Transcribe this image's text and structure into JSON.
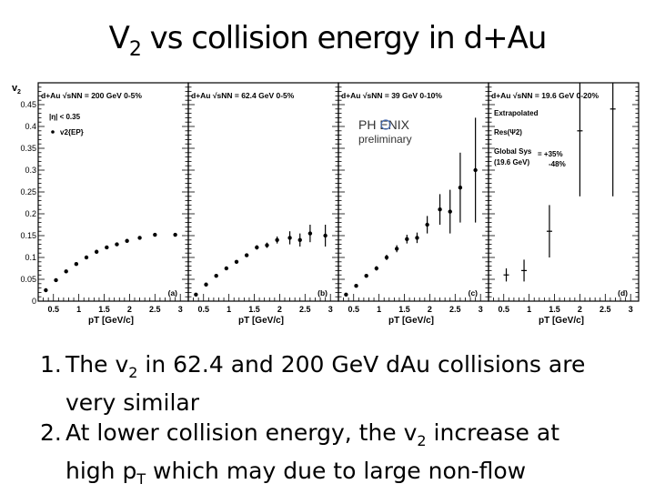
{
  "slide": {
    "title_main": "V",
    "title_sub": "2",
    "title_rest": " vs collision energy in d+Au",
    "bullets": [
      {
        "num": "1.",
        "parts": [
          "The v",
          "2",
          " in 62.4 and 200 GeV dAu collisions are"
        ],
        "cont": "very  similar"
      },
      {
        "num": "2.",
        "parts": [
          "At lower collision energy, the v",
          "2",
          " increase at"
        ],
        "cont_parts": [
          "high p",
          "T",
          " which may due to large non-flow"
        ]
      }
    ]
  },
  "chart_data": {
    "type": "scatter",
    "ylabel": "v2",
    "xlabel": "pT [GeV/c]",
    "ylim": [
      0,
      0.5
    ],
    "yticks": [
      "0",
      "0.05",
      "0.1",
      "0.15",
      "0.2",
      "0.25",
      "0.3",
      "0.35",
      "0.4",
      "0.45"
    ],
    "xticks": [
      "0.5",
      "1",
      "1.5",
      "2",
      "2.5",
      "3"
    ],
    "xlim": [
      0.2,
      3.05
    ],
    "panels": [
      {
        "tag": "(a)",
        "header": "d+Au √sNN = 200 GeV 0-5%",
        "legend": [
          "|η| < 0.35",
          "v2{EP}"
        ],
        "points": [
          {
            "x": 0.35,
            "y": 0.025,
            "err": 0.003
          },
          {
            "x": 0.55,
            "y": 0.048,
            "err": 0.003
          },
          {
            "x": 0.75,
            "y": 0.068,
            "err": 0.003
          },
          {
            "x": 0.95,
            "y": 0.085,
            "err": 0.003
          },
          {
            "x": 1.15,
            "y": 0.1,
            "err": 0.003
          },
          {
            "x": 1.35,
            "y": 0.113,
            "err": 0.003
          },
          {
            "x": 1.55,
            "y": 0.123,
            "err": 0.003
          },
          {
            "x": 1.75,
            "y": 0.13,
            "err": 0.003
          },
          {
            "x": 1.95,
            "y": 0.138,
            "err": 0.003
          },
          {
            "x": 2.2,
            "y": 0.145,
            "err": 0.003
          },
          {
            "x": 2.5,
            "y": 0.152,
            "err": 0.003
          },
          {
            "x": 2.9,
            "y": 0.152,
            "err": 0.004
          }
        ]
      },
      {
        "tag": "(b)",
        "header": "d+Au √sNN = 62.4 GeV 0-5%",
        "legend": [],
        "points": [
          {
            "x": 0.35,
            "y": 0.015,
            "err": 0.003
          },
          {
            "x": 0.55,
            "y": 0.038,
            "err": 0.003
          },
          {
            "x": 0.75,
            "y": 0.058,
            "err": 0.003
          },
          {
            "x": 0.95,
            "y": 0.075,
            "err": 0.003
          },
          {
            "x": 1.15,
            "y": 0.09,
            "err": 0.003
          },
          {
            "x": 1.35,
            "y": 0.105,
            "err": 0.004
          },
          {
            "x": 1.55,
            "y": 0.123,
            "err": 0.005
          },
          {
            "x": 1.75,
            "y": 0.128,
            "err": 0.006
          },
          {
            "x": 1.95,
            "y": 0.14,
            "err": 0.008
          },
          {
            "x": 2.2,
            "y": 0.145,
            "err": 0.015
          },
          {
            "x": 2.4,
            "y": 0.14,
            "err": 0.015
          },
          {
            "x": 2.6,
            "y": 0.155,
            "err": 0.02
          },
          {
            "x": 2.9,
            "y": 0.15,
            "err": 0.025
          }
        ]
      },
      {
        "tag": "(c)",
        "header": "d+Au √sNN = 39 GeV 0-10%",
        "legend": [],
        "logo_main": "PH  ENIX",
        "logo_sub": "preliminary",
        "points": [
          {
            "x": 0.35,
            "y": 0.015,
            "err": 0.003
          },
          {
            "x": 0.55,
            "y": 0.035,
            "err": 0.003
          },
          {
            "x": 0.75,
            "y": 0.058,
            "err": 0.004
          },
          {
            "x": 0.95,
            "y": 0.075,
            "err": 0.005
          },
          {
            "x": 1.15,
            "y": 0.1,
            "err": 0.006
          },
          {
            "x": 1.35,
            "y": 0.12,
            "err": 0.008
          },
          {
            "x": 1.55,
            "y": 0.142,
            "err": 0.01
          },
          {
            "x": 1.75,
            "y": 0.145,
            "err": 0.012
          },
          {
            "x": 1.95,
            "y": 0.175,
            "err": 0.02
          },
          {
            "x": 2.2,
            "y": 0.21,
            "err": 0.035
          },
          {
            "x": 2.4,
            "y": 0.205,
            "err": 0.05
          },
          {
            "x": 2.6,
            "y": 0.26,
            "err": 0.08
          },
          {
            "x": 2.9,
            "y": 0.3,
            "err": 0.12
          }
        ]
      },
      {
        "tag": "(d)",
        "header": "d+Au √sNN = 19.6 GeV 0-20%",
        "legend": [
          "Extrapolated",
          "Res(Ψ2)",
          "Global Sys",
          "(19.6 GeV)",
          "= +35%",
          "-48%"
        ],
        "points": [
          {
            "x": 0.55,
            "y": 0.06,
            "err": 0.015
          },
          {
            "x": 0.9,
            "y": 0.07,
            "err": 0.025
          },
          {
            "x": 1.4,
            "y": 0.16,
            "err": 0.06
          },
          {
            "x": 2.0,
            "y": 0.39,
            "err": 0.15
          },
          {
            "x": 2.65,
            "y": 0.44,
            "err": 0.2
          }
        ]
      }
    ]
  }
}
